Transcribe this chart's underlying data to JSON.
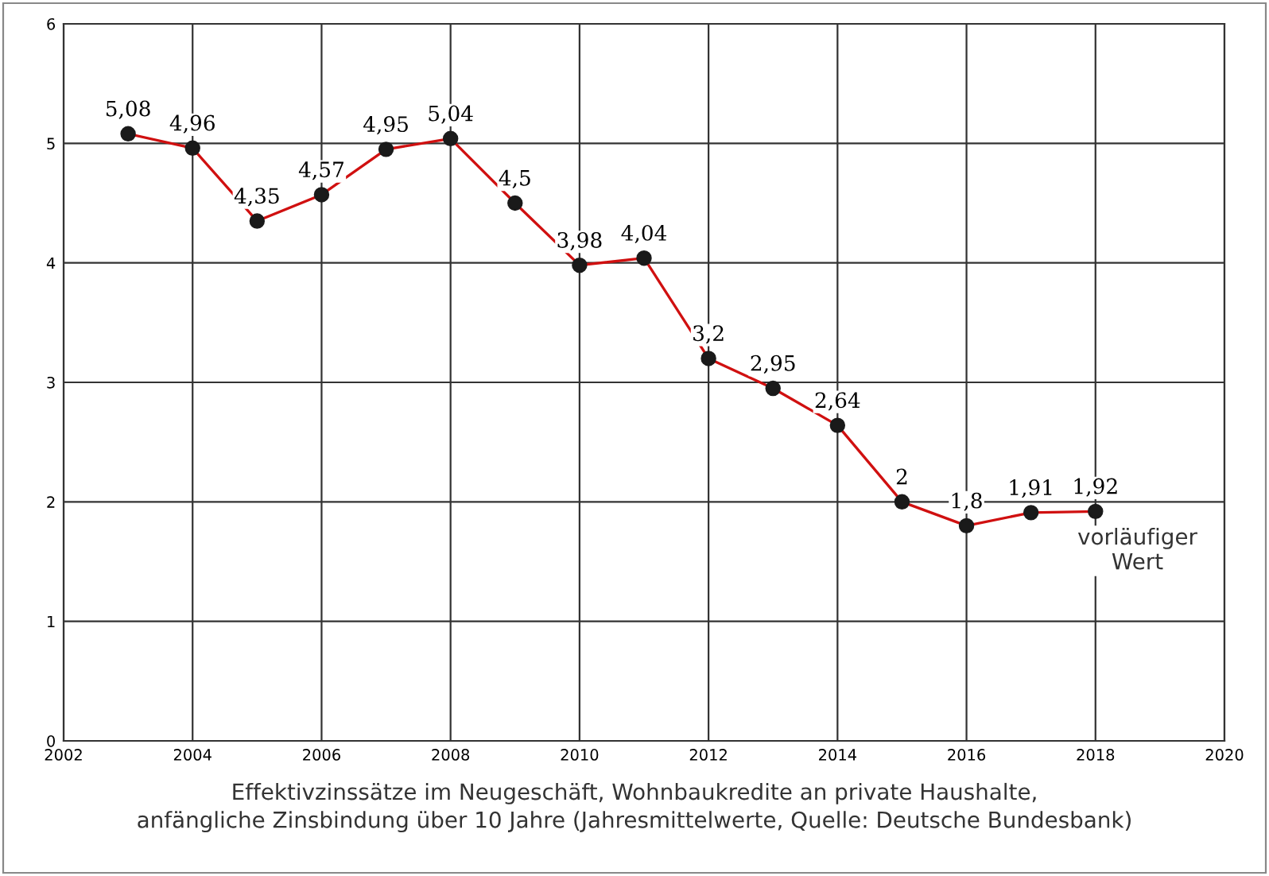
{
  "chart_data": {
    "type": "line",
    "x": [
      2003,
      2004,
      2005,
      2006,
      2007,
      2008,
      2009,
      2010,
      2011,
      2012,
      2013,
      2014,
      2015,
      2016,
      2017,
      2018
    ],
    "series": [
      {
        "color": "#d01010",
        "values": [
          5.08,
          4.96,
          4.35,
          4.57,
          4.95,
          5.04,
          4.5,
          3.98,
          4.04,
          3.2,
          2.95,
          2.64,
          2,
          1.8,
          1.91,
          1.92
        ],
        "value_labels": [
          "5,08",
          "4,96",
          "4,35",
          "4,57",
          "4,95",
          "5,04",
          "4,5",
          "3,98",
          "4,04",
          "3,2",
          "2,95",
          "2,64",
          "2",
          "1,8",
          "1,91",
          "1,92"
        ]
      }
    ],
    "xlim": [
      2002,
      2020
    ],
    "xticks": [
      2002,
      2004,
      2006,
      2008,
      2010,
      2012,
      2014,
      2016,
      2018,
      2020
    ],
    "ylim": [
      0,
      6
    ],
    "yticks": [
      0,
      1,
      2,
      3,
      4,
      5,
      6
    ],
    "grid": true,
    "marker": "circle",
    "line_style": "solid",
    "legend": false,
    "annotations": [
      "vorläufiger\nWert",
      "Effektivzinssätze im Neugeschäft, Wohnbaukredite an private Haushalte,\nanfängliche Zinsbindung über 10 Jahre (Jahresmittelwerte, Quelle: Deutsche Bundesbank)"
    ]
  }
}
